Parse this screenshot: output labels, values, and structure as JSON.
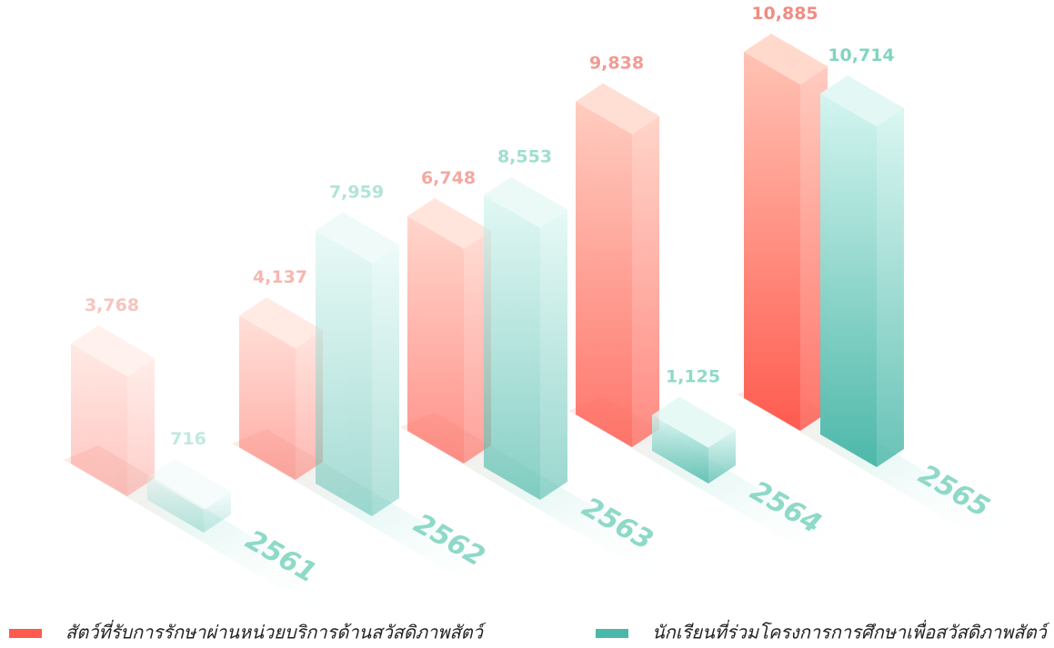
{
  "chart_data": {
    "type": "bar3d",
    "categories": [
      "2561",
      "2562",
      "2563",
      "2564",
      "2565"
    ],
    "series": [
      {
        "name": "สัตว์ที่รับการรักษาผ่านหน่วยบริการด้านสวัสดิภาพสัตว์",
        "color": "#ff5a4e",
        "values": [
          3768,
          4137,
          6748,
          9838,
          10885
        ],
        "value_labels": [
          "3,768",
          "4,137",
          "6,748",
          "9,838",
          "10,885"
        ]
      },
      {
        "name": "นักเรียนที่ร่วมโครงการการศึกษาเพื่อสวัสดิภาพสัตว์",
        "color": "#4cb8a9",
        "values": [
          716,
          7959,
          8553,
          1125,
          10714
        ],
        "value_labels": [
          "716",
          "7,959",
          "8,553",
          "1,125",
          "10,714"
        ]
      }
    ]
  }
}
